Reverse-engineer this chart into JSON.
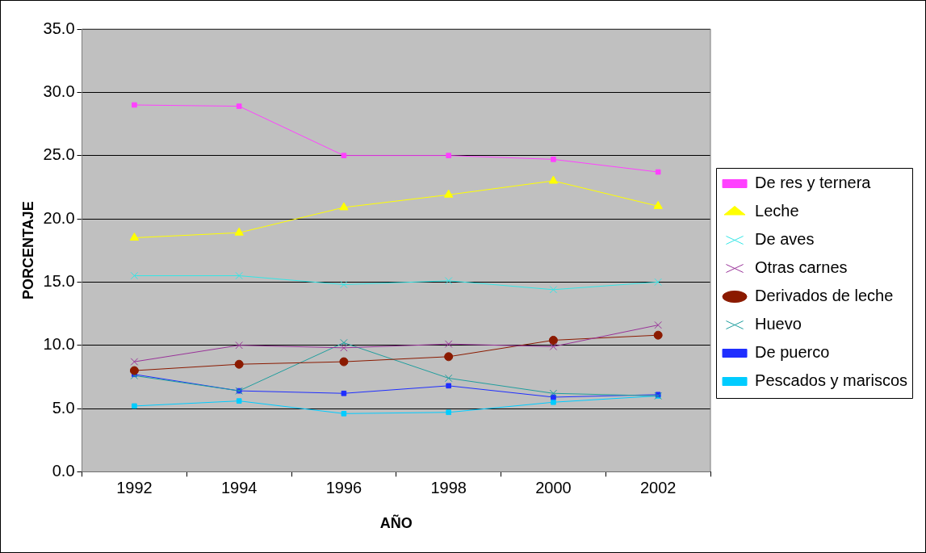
{
  "chart_data": {
    "type": "line",
    "xlabel": "AÑO",
    "ylabel": "PORCENTAJE",
    "categories": [
      "1992",
      "1994",
      "1996",
      "1998",
      "2000",
      "2002"
    ],
    "ylim": [
      0,
      35
    ],
    "yticks": [
      {
        "value": 0,
        "label": "0.0"
      },
      {
        "value": 5,
        "label": "5.0"
      },
      {
        "value": 10,
        "label": "10.0"
      },
      {
        "value": 15,
        "label": "15.0"
      },
      {
        "value": 20,
        "label": "20.0"
      },
      {
        "value": 25,
        "label": "25.0"
      },
      {
        "value": 30,
        "label": "30.0"
      },
      {
        "value": 35,
        "label": "35.0"
      }
    ],
    "grid": "y",
    "legend": "right",
    "series": [
      {
        "name": "De res y ternera",
        "color": "#ff40ff",
        "marker": "square",
        "values": [
          29.0,
          28.9,
          25.0,
          25.0,
          24.7,
          23.7
        ]
      },
      {
        "name": "Leche",
        "color": "#ffff00",
        "marker": "triangle",
        "values": [
          18.5,
          18.9,
          20.9,
          21.9,
          23.0,
          21.0
        ]
      },
      {
        "name": "De aves",
        "color": "#33e6e6",
        "marker": "cross",
        "values": [
          15.5,
          15.5,
          14.8,
          15.1,
          14.4,
          15.0
        ]
      },
      {
        "name": "Otras carnes",
        "color": "#993399",
        "marker": "cross",
        "values": [
          8.7,
          10.0,
          9.8,
          10.1,
          9.9,
          11.6
        ]
      },
      {
        "name": "Derivados de leche",
        "color": "#8b1a00",
        "marker": "circle",
        "values": [
          8.0,
          8.5,
          8.7,
          9.1,
          10.4,
          10.8
        ]
      },
      {
        "name": "Huevo",
        "color": "#1f9e9e",
        "marker": "cross",
        "values": [
          7.6,
          6.4,
          10.2,
          7.4,
          6.2,
          6.0
        ]
      },
      {
        "name": "De puerco",
        "color": "#1f2eff",
        "marker": "square",
        "values": [
          7.7,
          6.4,
          6.2,
          6.8,
          5.9,
          6.1
        ]
      },
      {
        "name": "Pescados y mariscos",
        "color": "#00ccff",
        "marker": "square",
        "values": [
          5.2,
          5.6,
          4.6,
          4.7,
          5.5,
          6.0
        ]
      }
    ]
  }
}
